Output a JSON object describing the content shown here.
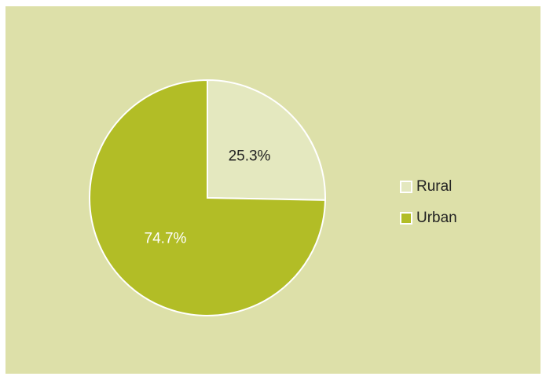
{
  "chart_data": {
    "type": "pie",
    "categories": [
      "Rural",
      "Urban"
    ],
    "values": [
      25.3,
      74.7
    ],
    "value_labels": [
      "25.3%",
      "74.7%"
    ],
    "colors": [
      "#e4e8bf",
      "#b2bd26"
    ],
    "label_colors": [
      "#222222",
      "#ffffff"
    ],
    "legend": "right"
  }
}
